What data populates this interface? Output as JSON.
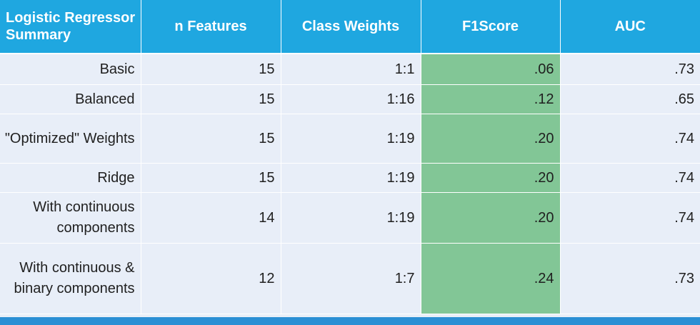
{
  "table": {
    "headers": [
      "Logistic Regressor Summary",
      "n Features",
      "Class Weights",
      "F1Score",
      "AUC"
    ],
    "rows": [
      {
        "model": "Basic",
        "n_features": "15",
        "class_weights": "1:1",
        "f1": ".06",
        "auc": ".73"
      },
      {
        "model": "Balanced",
        "n_features": "15",
        "class_weights": "1:16",
        "f1": ".12",
        "auc": ".65"
      },
      {
        "model": "\"Optimized\" Weights",
        "n_features": "15",
        "class_weights": "1:19",
        "f1": ".20",
        "auc": ".74"
      },
      {
        "model": "Ridge",
        "n_features": "15",
        "class_weights": "1:19",
        "f1": ".20",
        "auc": ".74"
      },
      {
        "model": "With continuous components",
        "n_features": "14",
        "class_weights": "1:19",
        "f1": ".20",
        "auc": ".74"
      },
      {
        "model": "With continuous & binary components",
        "n_features": "12",
        "class_weights": "1:7",
        "f1": ".24",
        "auc": ".73"
      }
    ]
  },
  "colors": {
    "header_bg": "#1fa7e0",
    "cell_bg": "#e8eef8",
    "highlight_column_bg": "#82c696",
    "bottom_bar": "#2b8fd4"
  }
}
